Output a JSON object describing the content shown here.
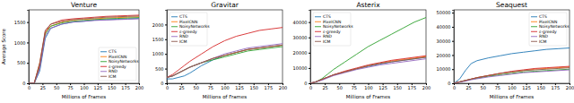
{
  "chart_data": [
    {
      "type": "line",
      "title": "Venture",
      "xlabel": "Millions of Frames",
      "ylabel": "Average Score",
      "x": [
        0,
        10,
        20,
        30,
        40,
        60,
        80,
        100,
        120,
        140,
        160,
        180,
        200
      ],
      "xlim": [
        0,
        200
      ],
      "xticks": [
        0,
        25,
        50,
        75,
        100,
        125,
        150,
        175,
        200
      ],
      "ylim": [
        0,
        1800
      ],
      "yticks": [
        0,
        500,
        1000,
        1500
      ],
      "legend": "lower right",
      "series": [
        {
          "name": "CTS",
          "color": "#1f77b4",
          "values": [
            0,
            0,
            300,
            1100,
            1350,
            1450,
            1500,
            1520,
            1550,
            1560,
            1570,
            1580,
            1590
          ]
        },
        {
          "name": "PixelCNN",
          "color": "#ff7f0e",
          "values": [
            0,
            0,
            500,
            1250,
            1400,
            1500,
            1550,
            1570,
            1580,
            1600,
            1610,
            1620,
            1630
          ]
        },
        {
          "name": "NoisyNetworks",
          "color": "#2ca02c",
          "values": [
            0,
            0,
            400,
            1200,
            1400,
            1480,
            1520,
            1540,
            1560,
            1580,
            1590,
            1600,
            1610
          ]
        },
        {
          "name": "ε-greedy",
          "color": "#d62728",
          "values": [
            0,
            0,
            450,
            1250,
            1450,
            1550,
            1580,
            1600,
            1620,
            1640,
            1650,
            1660,
            1670
          ]
        },
        {
          "name": "RND",
          "color": "#9467bd",
          "values": [
            0,
            0,
            350,
            1150,
            1350,
            1450,
            1500,
            1520,
            1540,
            1550,
            1560,
            1570,
            1580
          ]
        },
        {
          "name": "ICM",
          "color": "#8c564b",
          "values": [
            0,
            0,
            500,
            1300,
            1450,
            1520,
            1560,
            1580,
            1600,
            1620,
            1630,
            1640,
            1650
          ]
        }
      ]
    },
    {
      "type": "line",
      "title": "Gravitar",
      "xlabel": "Millions of Frames",
      "x": [
        0,
        10,
        20,
        30,
        40,
        60,
        80,
        100,
        120,
        140,
        160,
        180,
        200
      ],
      "xlim": [
        0,
        200
      ],
      "xticks": [
        0,
        25,
        50,
        75,
        100,
        125,
        150,
        175,
        200
      ],
      "ylim": [
        0,
        2500
      ],
      "yticks": [
        0,
        500,
        1000,
        1500,
        2000
      ],
      "legend": "upper left",
      "series": [
        {
          "name": "CTS",
          "color": "#1f77b4",
          "values": [
            150,
            150,
            200,
            250,
            350,
            600,
            800,
            950,
            1050,
            1150,
            1200,
            1250,
            1300
          ]
        },
        {
          "name": "PixelCNN",
          "color": "#ff7f0e",
          "values": [
            200,
            250,
            350,
            450,
            550,
            700,
            850,
            950,
            1050,
            1150,
            1200,
            1250,
            1300
          ]
        },
        {
          "name": "NoisyNetworks",
          "color": "#2ca02c",
          "values": [
            200,
            250,
            350,
            450,
            550,
            700,
            800,
            900,
            1000,
            1100,
            1150,
            1200,
            1250
          ]
        },
        {
          "name": "ε-greedy",
          "color": "#d62728",
          "values": [
            200,
            300,
            450,
            600,
            750,
            1000,
            1250,
            1450,
            1600,
            1700,
            1800,
            1850,
            1900
          ]
        },
        {
          "name": "RND",
          "color": "#9467bd",
          "values": [
            200,
            250,
            350,
            450,
            550,
            700,
            850,
            1000,
            1100,
            1200,
            1250,
            1300,
            1350
          ]
        },
        {
          "name": "ICM",
          "color": "#8c564b",
          "values": [
            200,
            250,
            350,
            450,
            550,
            700,
            850,
            950,
            1050,
            1150,
            1200,
            1250,
            1300
          ]
        }
      ]
    },
    {
      "type": "line",
      "title": "Asterix",
      "xlabel": "Millions of Frames",
      "x": [
        0,
        10,
        20,
        30,
        40,
        60,
        80,
        100,
        120,
        140,
        160,
        180,
        200
      ],
      "xlim": [
        0,
        200
      ],
      "xticks": [
        0,
        25,
        50,
        75,
        100,
        125,
        150,
        175,
        200
      ],
      "ylim": [
        0,
        48000
      ],
      "yticks": [
        0,
        10000,
        20000,
        30000,
        40000
      ],
      "legend": "upper left",
      "series": [
        {
          "name": "CTS",
          "color": "#1f77b4",
          "values": [
            0,
            1000,
            2500,
            4000,
            5500,
            7500,
            9500,
            11000,
            12500,
            14000,
            15000,
            16000,
            17000
          ]
        },
        {
          "name": "PixelCNN",
          "color": "#ff7f0e",
          "values": [
            0,
            1000,
            2500,
            4000,
            5500,
            7500,
            9500,
            11500,
            13000,
            14500,
            15500,
            16500,
            17500
          ]
        },
        {
          "name": "NoisyNetworks",
          "color": "#2ca02c",
          "values": [
            0,
            1000,
            3000,
            6000,
            9000,
            14000,
            19000,
            24000,
            28000,
            32000,
            36000,
            40000,
            43000
          ]
        },
        {
          "name": "ε-greedy",
          "color": "#d62728",
          "values": [
            0,
            1000,
            2500,
            4000,
            5500,
            8000,
            10000,
            12000,
            13500,
            15000,
            16000,
            17000,
            18000
          ]
        },
        {
          "name": "RND",
          "color": "#9467bd",
          "values": [
            0,
            1000,
            2000,
            3500,
            5000,
            7000,
            9000,
            10500,
            12000,
            13000,
            14000,
            15000,
            16000
          ]
        },
        {
          "name": "ICM",
          "color": "#8c564b",
          "values": [
            0,
            1000,
            2500,
            4000,
            5500,
            7500,
            9500,
            11500,
            13000,
            14000,
            15000,
            16000,
            17000
          ]
        }
      ]
    },
    {
      "type": "line",
      "title": "Seaquest",
      "xlabel": "Millions of Frames",
      "x": [
        0,
        10,
        20,
        30,
        40,
        60,
        80,
        100,
        120,
        140,
        160,
        180,
        200
      ],
      "xlim": [
        0,
        200
      ],
      "xticks": [
        0,
        25,
        50,
        75,
        100,
        125,
        150,
        175,
        200
      ],
      "ylim": [
        0,
        52000
      ],
      "yticks": [
        0,
        10000,
        20000,
        30000,
        40000,
        50000
      ],
      "legend": "upper right",
      "series": [
        {
          "name": "CTS",
          "color": "#1f77b4",
          "values": [
            0,
            3000,
            9000,
            14000,
            16000,
            18000,
            19500,
            21000,
            22000,
            23000,
            24000,
            24500,
            25000
          ]
        },
        {
          "name": "PixelCNN",
          "color": "#ff7f0e",
          "values": [
            0,
            1000,
            2000,
            3000,
            4000,
            5500,
            7000,
            8000,
            9000,
            10000,
            10500,
            11000,
            11500
          ]
        },
        {
          "name": "NoisyNetworks",
          "color": "#2ca02c",
          "values": [
            0,
            1000,
            2000,
            2800,
            3500,
            5000,
            6000,
            7000,
            8000,
            8500,
            9000,
            9500,
            10000
          ]
        },
        {
          "name": "ε-greedy",
          "color": "#d62728",
          "values": [
            0,
            1000,
            2000,
            3000,
            4000,
            5500,
            7000,
            8500,
            9500,
            10500,
            11000,
            11500,
            12000
          ]
        },
        {
          "name": "RND",
          "color": "#9467bd",
          "values": [
            0,
            800,
            1500,
            2500,
            3200,
            4500,
            5500,
            6500,
            7500,
            8000,
            8500,
            9000,
            9500
          ]
        },
        {
          "name": "ICM",
          "color": "#8c564b",
          "values": [
            0,
            1000,
            2000,
            3000,
            4000,
            5500,
            7000,
            8000,
            9000,
            9500,
            10000,
            10500,
            11000
          ]
        }
      ]
    }
  ]
}
